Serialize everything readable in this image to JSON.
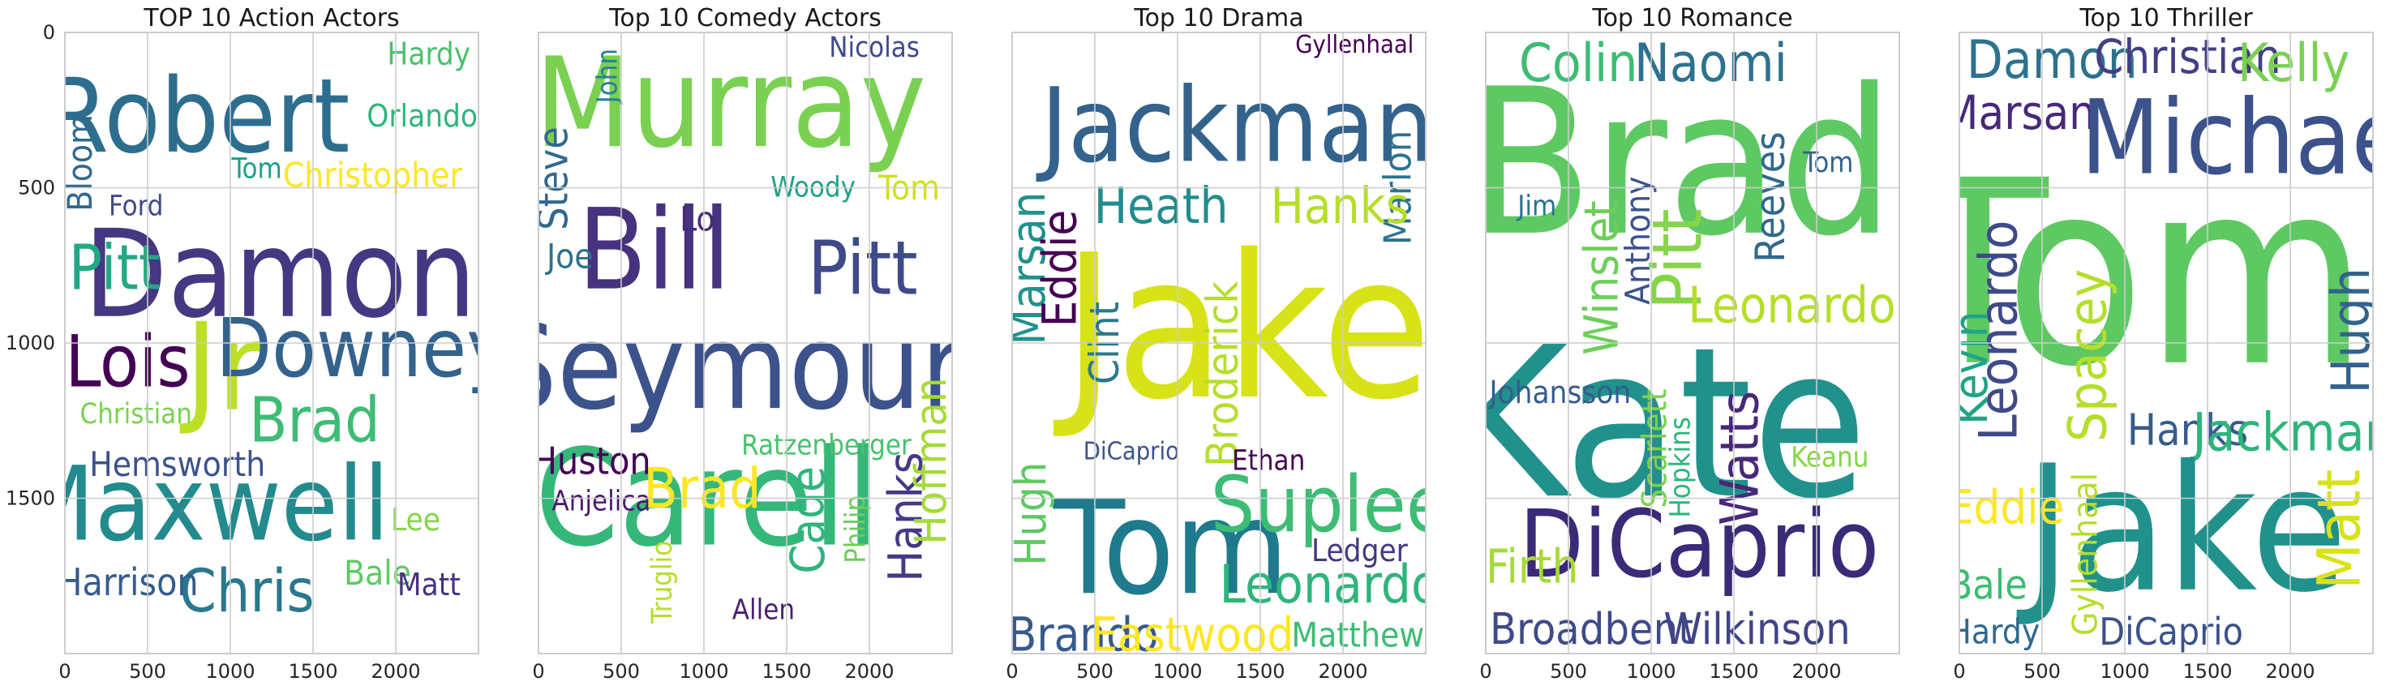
{
  "chart_data": [
    {
      "type": "wordcloud",
      "title": "TOP 10 Action Actors",
      "xticks": [
        "0",
        "500",
        "1000",
        "1500",
        "2000"
      ],
      "yticks": [
        "0",
        "500",
        "1000",
        "1500"
      ],
      "xlim": [
        0,
        2500
      ],
      "ylim": [
        2000,
        0
      ],
      "grid": true,
      "words": [
        {
          "text": "Robert",
          "x": 800,
          "y": 270,
          "size": 330,
          "color": "#2d6e8e"
        },
        {
          "text": "Damon",
          "x": 1300,
          "y": 780,
          "size": 390,
          "color": "#453781"
        },
        {
          "text": "Maxwell",
          "x": 830,
          "y": 1520,
          "size": 330,
          "color": "#238a8d"
        },
        {
          "text": "Jr",
          "x": 960,
          "y": 1080,
          "size": 390,
          "color": "#bddf26"
        },
        {
          "text": "Downey",
          "x": 1800,
          "y": 1020,
          "size": 260,
          "color": "#33638d"
        },
        {
          "text": "Lois",
          "x": 380,
          "y": 1060,
          "size": 230,
          "color": "#440154"
        },
        {
          "text": "Brad",
          "x": 1510,
          "y": 1250,
          "size": 200,
          "color": "#3dbc74"
        },
        {
          "text": "Pitt",
          "x": 300,
          "y": 760,
          "size": 200,
          "color": "#22a884"
        },
        {
          "text": "Chris",
          "x": 1100,
          "y": 1800,
          "size": 190,
          "color": "#2a788e"
        },
        {
          "text": "Harrison",
          "x": 380,
          "y": 1770,
          "size": 120,
          "color": "#365c8d"
        },
        {
          "text": "Hemsworth",
          "x": 680,
          "y": 1390,
          "size": 110,
          "color": "#3b528b"
        },
        {
          "text": "Christian",
          "x": 430,
          "y": 1230,
          "size": 90,
          "color": "#7ad151"
        },
        {
          "text": "Christopher",
          "x": 1860,
          "y": 460,
          "size": 110,
          "color": "#fde725"
        },
        {
          "text": "Orlando",
          "x": 2160,
          "y": 270,
          "size": 100,
          "color": "#2fb47c"
        },
        {
          "text": "Hardy",
          "x": 2200,
          "y": 70,
          "size": 100,
          "color": "#4ac16d"
        },
        {
          "text": "Tom",
          "x": 1160,
          "y": 440,
          "size": 90,
          "color": "#1f9e89"
        },
        {
          "text": "Ford",
          "x": 430,
          "y": 560,
          "size": 90,
          "color": "#3e4a89"
        },
        {
          "text": "Bloom",
          "x": 90,
          "y": 420,
          "size": 110,
          "color": "#31688e",
          "rotate": true
        },
        {
          "text": "Bale",
          "x": 1890,
          "y": 1740,
          "size": 110,
          "color": "#5ec962"
        },
        {
          "text": "Lee",
          "x": 2120,
          "y": 1570,
          "size": 100,
          "color": "#86d549"
        },
        {
          "text": "Matt",
          "x": 2200,
          "y": 1780,
          "size": 100,
          "color": "#46327e"
        }
      ]
    },
    {
      "type": "wordcloud",
      "title": "Top 10 Comedy Actors",
      "xticks": [
        "0",
        "500",
        "1000",
        "1500",
        "2000"
      ],
      "yticks": [],
      "xlim": [
        0,
        2500
      ],
      "ylim": [
        2000,
        0
      ],
      "grid": true,
      "words": [
        {
          "text": "Murray",
          "x": 1160,
          "y": 230,
          "size": 400,
          "color": "#7ad151"
        },
        {
          "text": "Seymour",
          "x": 1140,
          "y": 1080,
          "size": 380,
          "color": "#3b528b"
        },
        {
          "text": "Carell",
          "x": 1020,
          "y": 1500,
          "size": 430,
          "color": "#35b779"
        },
        {
          "text": "Bill",
          "x": 700,
          "y": 700,
          "size": 360,
          "color": "#46327e"
        },
        {
          "text": "Pitt",
          "x": 1960,
          "y": 760,
          "size": 240,
          "color": "#3e4a89"
        },
        {
          "text": "Steve",
          "x": 90,
          "y": 470,
          "size": 130,
          "color": "#31688e",
          "rotate": true
        },
        {
          "text": "John",
          "x": 420,
          "y": 140,
          "size": 90,
          "color": "#26828e",
          "rotate": true
        },
        {
          "text": "Nicolas",
          "x": 2030,
          "y": 50,
          "size": 90,
          "color": "#3e4a89"
        },
        {
          "text": "Lo",
          "x": 960,
          "y": 600,
          "size": 110,
          "color": "#482878"
        },
        {
          "text": "Woody",
          "x": 1660,
          "y": 500,
          "size": 90,
          "color": "#1fa187"
        },
        {
          "text": "Tom",
          "x": 2240,
          "y": 500,
          "size": 110,
          "color": "#d0e11c"
        },
        {
          "text": "Joe",
          "x": 190,
          "y": 720,
          "size": 110,
          "color": "#2c728e"
        },
        {
          "text": "Huston",
          "x": 320,
          "y": 1380,
          "size": 120,
          "color": "#440154"
        },
        {
          "text": "Anjelica",
          "x": 380,
          "y": 1510,
          "size": 90,
          "color": "#481a6c"
        },
        {
          "text": "Brad",
          "x": 990,
          "y": 1470,
          "size": 180,
          "color": "#fde725"
        },
        {
          "text": "Ratzenberger",
          "x": 1740,
          "y": 1330,
          "size": 90,
          "color": "#4ac16d"
        },
        {
          "text": "Cage",
          "x": 1630,
          "y": 1570,
          "size": 150,
          "color": "#2fb47c",
          "rotate": true
        },
        {
          "text": "Philip",
          "x": 1920,
          "y": 1600,
          "size": 90,
          "color": "#6ece58",
          "rotate": true
        },
        {
          "text": "Hanks",
          "x": 2220,
          "y": 1560,
          "size": 150,
          "color": "#443983",
          "rotate": true
        },
        {
          "text": "Hoffman",
          "x": 2370,
          "y": 1380,
          "size": 140,
          "color": "#a5db36",
          "rotate": true
        },
        {
          "text": "Truglio",
          "x": 750,
          "y": 1770,
          "size": 90,
          "color": "#b5de2b",
          "rotate": true
        },
        {
          "text": "Allen",
          "x": 1360,
          "y": 1860,
          "size": 90,
          "color": "#482173"
        }
      ]
    },
    {
      "type": "wordcloud",
      "title": "Top 10 Drama",
      "xticks": [
        "0",
        "500",
        "1000",
        "1500",
        "2000"
      ],
      "yticks": [],
      "xlim": [
        0,
        2500
      ],
      "ylim": [
        2000,
        0
      ],
      "grid": true,
      "words": [
        {
          "text": "Jackman",
          "x": 1360,
          "y": 300,
          "size": 330,
          "color": "#33638d"
        },
        {
          "text": "Jake",
          "x": 1420,
          "y": 950,
          "size": 640,
          "color": "#d8e219"
        },
        {
          "text": "Tom",
          "x": 960,
          "y": 1660,
          "size": 420,
          "color": "#1e7a8c"
        },
        {
          "text": "Suplee",
          "x": 1920,
          "y": 1520,
          "size": 250,
          "color": "#3dbc74"
        },
        {
          "text": "Gyllenhaal",
          "x": 2070,
          "y": 40,
          "size": 80,
          "color": "#440154"
        },
        {
          "text": "Marlon",
          "x": 2330,
          "y": 500,
          "size": 120,
          "color": "#2c728e",
          "rotate": true
        },
        {
          "text": "Heath",
          "x": 900,
          "y": 560,
          "size": 160,
          "color": "#228c8d"
        },
        {
          "text": "Hanks",
          "x": 1980,
          "y": 560,
          "size": 160,
          "color": "#b5de2b"
        },
        {
          "text": "Marsan",
          "x": 100,
          "y": 760,
          "size": 150,
          "color": "#21918c",
          "rotate": true
        },
        {
          "text": "Eddie",
          "x": 290,
          "y": 760,
          "size": 150,
          "color": "#440154",
          "rotate": true
        },
        {
          "text": "Clint",
          "x": 560,
          "y": 1000,
          "size": 130,
          "color": "#2a788e",
          "rotate": true
        },
        {
          "text": "Broderick",
          "x": 1270,
          "y": 1100,
          "size": 140,
          "color": "#b5de2b",
          "rotate": true
        },
        {
          "text": "DiCaprio",
          "x": 720,
          "y": 1350,
          "size": 80,
          "color": "#3b528b"
        },
        {
          "text": "Ethan",
          "x": 1550,
          "y": 1380,
          "size": 90,
          "color": "#440154"
        },
        {
          "text": "Ledger",
          "x": 2100,
          "y": 1670,
          "size": 100,
          "color": "#453781"
        },
        {
          "text": "Leonardo",
          "x": 1920,
          "y": 1780,
          "size": 170,
          "color": "#2fb47c"
        },
        {
          "text": "Hugh",
          "x": 110,
          "y": 1550,
          "size": 140,
          "color": "#5ec962",
          "rotate": true
        },
        {
          "text": "Brando",
          "x": 430,
          "y": 1940,
          "size": 150,
          "color": "#375a8c"
        },
        {
          "text": "Eastwood",
          "x": 1090,
          "y": 1940,
          "size": 150,
          "color": "#fde725"
        },
        {
          "text": "Matthew",
          "x": 2090,
          "y": 1940,
          "size": 110,
          "color": "#3dbc74"
        }
      ]
    },
    {
      "type": "wordcloud",
      "title": "Top 10 Romance",
      "xticks": [
        "0",
        "500",
        "1000",
        "1500",
        "2000"
      ],
      "yticks": [],
      "xlim": [
        0,
        2500
      ],
      "ylim": [
        2000,
        0
      ],
      "grid": true,
      "words": [
        {
          "text": "Brad",
          "x": 1180,
          "y": 420,
          "size": 650,
          "color": "#5ec962"
        },
        {
          "text": "Kate",
          "x": 1030,
          "y": 1260,
          "size": 670,
          "color": "#21918c"
        },
        {
          "text": "DiCaprio",
          "x": 1290,
          "y": 1650,
          "size": 300,
          "color": "#3b2a78"
        },
        {
          "text": "Colin",
          "x": 560,
          "y": 100,
          "size": 170,
          "color": "#3dbc74"
        },
        {
          "text": "Naomi",
          "x": 1360,
          "y": 100,
          "size": 170,
          "color": "#2c728e"
        },
        {
          "text": "Reeves",
          "x": 1720,
          "y": 530,
          "size": 130,
          "color": "#31688e",
          "rotate": true
        },
        {
          "text": "Tom",
          "x": 2070,
          "y": 420,
          "size": 90,
          "color": "#33638d"
        },
        {
          "text": "Jim",
          "x": 310,
          "y": 560,
          "size": 90,
          "color": "#2c728e"
        },
        {
          "text": "Winslet",
          "x": 700,
          "y": 790,
          "size": 150,
          "color": "#6ece58",
          "rotate": true
        },
        {
          "text": "Anthony",
          "x": 920,
          "y": 670,
          "size": 110,
          "color": "#3b528b",
          "rotate": true
        },
        {
          "text": "Pitt",
          "x": 1160,
          "y": 730,
          "size": 220,
          "color": "#86d549",
          "rotate": true
        },
        {
          "text": "Leonardo",
          "x": 1850,
          "y": 880,
          "size": 160,
          "color": "#b5de2b"
        },
        {
          "text": "Johansson",
          "x": 450,
          "y": 1160,
          "size": 100,
          "color": "#365c8d"
        },
        {
          "text": "Scarlett",
          "x": 1020,
          "y": 1340,
          "size": 110,
          "color": "#7ad151",
          "rotate": true
        },
        {
          "text": "Hopkins",
          "x": 1180,
          "y": 1400,
          "size": 90,
          "color": "#2fb47c",
          "rotate": true
        },
        {
          "text": "Watts",
          "x": 1540,
          "y": 1370,
          "size": 170,
          "color": "#482878",
          "rotate": true
        },
        {
          "text": "Keanu",
          "x": 2080,
          "y": 1370,
          "size": 90,
          "color": "#86d549"
        },
        {
          "text": "Firth",
          "x": 280,
          "y": 1720,
          "size": 150,
          "color": "#a5db36"
        },
        {
          "text": "Broadbent",
          "x": 640,
          "y": 1920,
          "size": 140,
          "color": "#3e4a89"
        },
        {
          "text": "Wilkinson",
          "x": 1640,
          "y": 1920,
          "size": 140,
          "color": "#414487"
        }
      ]
    },
    {
      "type": "wordcloud",
      "title": "Top 10 Thriller",
      "xticks": [
        "0",
        "500",
        "1000",
        "1500",
        "2000"
      ],
      "yticks": [],
      "xlim": [
        0,
        2500
      ],
      "ylim": [
        2000,
        0
      ],
      "grid": true,
      "words": [
        {
          "text": "Damon",
          "x": 560,
          "y": 90,
          "size": 170,
          "color": "#2c728e"
        },
        {
          "text": "Christian",
          "x": 1380,
          "y": 80,
          "size": 150,
          "color": "#433e85"
        },
        {
          "text": "Kelly",
          "x": 2020,
          "y": 100,
          "size": 170,
          "color": "#7ad151"
        },
        {
          "text": "Marsan",
          "x": 360,
          "y": 260,
          "size": 150,
          "color": "#482878"
        },
        {
          "text": "Michael",
          "x": 1800,
          "y": 340,
          "size": 330,
          "color": "#3b528b"
        },
        {
          "text": "Tom",
          "x": 1080,
          "y": 780,
          "size": 820,
          "color": "#5ec962"
        },
        {
          "text": "Leonardo",
          "x": 240,
          "y": 960,
          "size": 170,
          "color": "#3e4a89",
          "rotate": true
        },
        {
          "text": "Kevin",
          "x": 70,
          "y": 1080,
          "size": 150,
          "color": "#20a386",
          "rotate": true
        },
        {
          "text": "Spacey",
          "x": 780,
          "y": 1040,
          "size": 170,
          "color": "#b5de2b",
          "rotate": true
        },
        {
          "text": "Hugh",
          "x": 2370,
          "y": 960,
          "size": 170,
          "color": "#33638d",
          "rotate": true
        },
        {
          "text": "Hanks",
          "x": 1380,
          "y": 1280,
          "size": 140,
          "color": "#365c8d"
        },
        {
          "text": "Jackman",
          "x": 2020,
          "y": 1290,
          "size": 170,
          "color": "#2fb47c"
        },
        {
          "text": "Jake",
          "x": 1370,
          "y": 1600,
          "size": 560,
          "color": "#21918c"
        },
        {
          "text": "Eddie",
          "x": 280,
          "y": 1530,
          "size": 150,
          "color": "#fde725"
        },
        {
          "text": "Gyllenhaal",
          "x": 760,
          "y": 1680,
          "size": 110,
          "color": "#b5de2b",
          "rotate": true
        },
        {
          "text": "Matt",
          "x": 2300,
          "y": 1600,
          "size": 190,
          "color": "#d8e219",
          "rotate": true
        },
        {
          "text": "Bale",
          "x": 170,
          "y": 1780,
          "size": 130,
          "color": "#3dbc74"
        },
        {
          "text": "Hardy",
          "x": 210,
          "y": 1930,
          "size": 110,
          "color": "#31688e"
        },
        {
          "text": "DiCaprio",
          "x": 1280,
          "y": 1930,
          "size": 120,
          "color": "#3b528b"
        }
      ]
    }
  ]
}
